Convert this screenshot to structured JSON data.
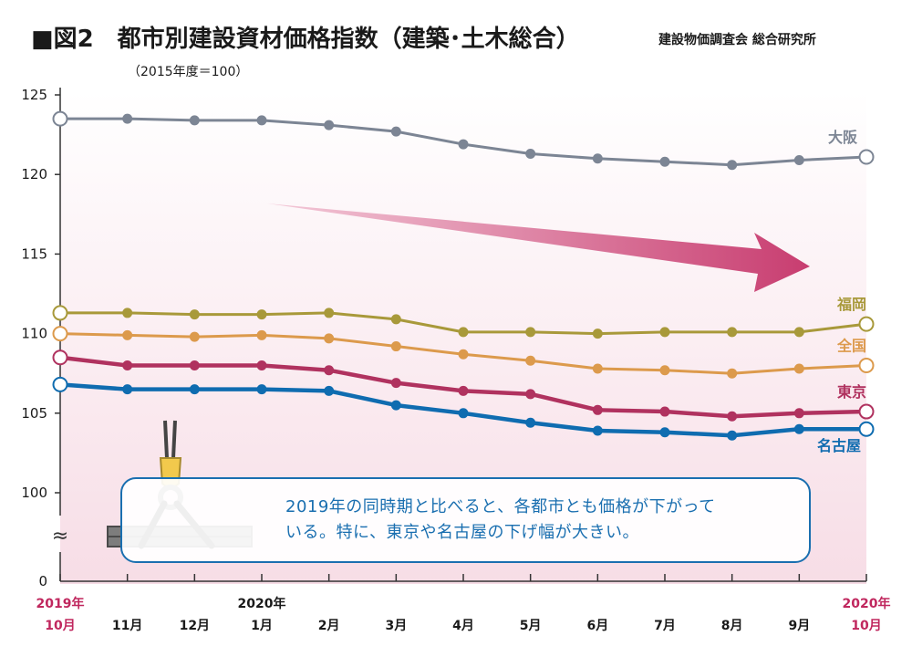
{
  "header": {
    "title": "■図2　都市別建設資材価格指数（建築･土木総合）",
    "subtitle": "（2015年度＝100）",
    "source": "建設物価調査会 総合研究所"
  },
  "note": {
    "line1": "2019年の同時期と比べると、各都市とも価格が下がって",
    "line2": "いる。特に、東京や名古屋の下げ幅が大きい。"
  },
  "chart_data": {
    "type": "line",
    "x": [
      "2019年10月",
      "11月",
      "12月",
      "1月",
      "2月",
      "3月",
      "4月",
      "5月",
      "6月",
      "7月",
      "8月",
      "9月",
      "2020年10月"
    ],
    "x_tick_labels": [
      {
        "top": "2019年",
        "bottom": "10月",
        "color": "#c0275e"
      },
      {
        "top": "",
        "bottom": "11月",
        "color": "#1a1a1a"
      },
      {
        "top": "",
        "bottom": "12月",
        "color": "#1a1a1a"
      },
      {
        "top": "2020年",
        "bottom": "1月",
        "color": "#1a1a1a"
      },
      {
        "top": "",
        "bottom": "2月",
        "color": "#1a1a1a"
      },
      {
        "top": "",
        "bottom": "3月",
        "color": "#1a1a1a"
      },
      {
        "top": "",
        "bottom": "4月",
        "color": "#1a1a1a"
      },
      {
        "top": "",
        "bottom": "5月",
        "color": "#1a1a1a"
      },
      {
        "top": "",
        "bottom": "6月",
        "color": "#1a1a1a"
      },
      {
        "top": "",
        "bottom": "7月",
        "color": "#1a1a1a"
      },
      {
        "top": "",
        "bottom": "8月",
        "color": "#1a1a1a"
      },
      {
        "top": "",
        "bottom": "9月",
        "color": "#1a1a1a"
      },
      {
        "top": "2020年",
        "bottom": "10月",
        "color": "#c0275e"
      }
    ],
    "y_ticks": [
      125,
      120,
      115,
      110,
      105,
      100
    ],
    "y_zero_label": "0",
    "y_break_symbol": "≈",
    "ylim": [
      100,
      125
    ],
    "grid": false,
    "series": [
      {
        "name": "大阪",
        "color": "#7c8594",
        "values": [
          123.5,
          123.5,
          123.4,
          123.4,
          123.1,
          122.7,
          121.9,
          121.3,
          121.0,
          120.8,
          120.6,
          120.9,
          121.1
        ]
      },
      {
        "name": "福岡",
        "color": "#a8993a",
        "values": [
          111.3,
          111.3,
          111.2,
          111.2,
          111.3,
          110.9,
          110.1,
          110.1,
          110.0,
          110.1,
          110.1,
          110.1,
          110.6
        ]
      },
      {
        "name": "全国",
        "color": "#dc9a4c",
        "values": [
          110.0,
          109.9,
          109.8,
          109.9,
          109.7,
          109.2,
          108.7,
          108.3,
          107.8,
          107.7,
          107.5,
          107.8,
          108.0
        ]
      },
      {
        "name": "東京",
        "color": "#b0325f",
        "values": [
          108.5,
          108.0,
          108.0,
          108.0,
          107.7,
          106.9,
          106.4,
          106.2,
          105.2,
          105.1,
          104.8,
          105.0,
          105.1
        ]
      },
      {
        "name": "名古屋",
        "color": "#0f6cb0",
        "values": [
          106.8,
          106.5,
          106.5,
          106.5,
          106.4,
          105.5,
          105.0,
          104.4,
          103.9,
          103.8,
          103.6,
          104.0,
          104.0
        ]
      }
    ]
  }
}
